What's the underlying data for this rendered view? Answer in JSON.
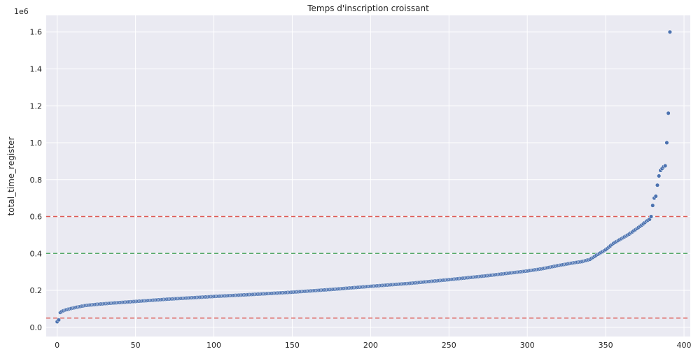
{
  "chart_data": {
    "type": "scatter",
    "title": "Temps d'inscription croissant",
    "xlabel": "",
    "ylabel": "total_time_register",
    "y_offset_label": "1e6",
    "y_scale": 1000000,
    "xlim": [
      -7,
      404
    ],
    "ylim": [
      -0.05,
      1.69
    ],
    "x_ticks": [
      0,
      50,
      100,
      150,
      200,
      250,
      300,
      350,
      400
    ],
    "y_ticks": [
      0.0,
      0.2,
      0.4,
      0.6,
      0.8,
      1.0,
      1.2,
      1.4,
      1.6
    ],
    "x_tick_labels": [
      "0",
      "50",
      "100",
      "150",
      "200",
      "250",
      "300",
      "350",
      "400"
    ],
    "y_tick_labels": [
      "0.0",
      "0.2",
      "0.4",
      "0.6",
      "0.8",
      "1.0",
      "1.2",
      "1.4",
      "1.6"
    ],
    "grid": true,
    "colors": {
      "background": "#eaeaf2",
      "grid": "#ffffff",
      "points": "#4c72b0",
      "point_edge": "#ffffff",
      "red_line": "#dd5a55",
      "green_line": "#55a868"
    },
    "hlines": [
      {
        "y": 0.05,
        "color": "#dd5a55",
        "style": "dashed"
      },
      {
        "y": 0.4,
        "color": "#55a868",
        "style": "dashed"
      },
      {
        "y": 0.6,
        "color": "#dd5a55",
        "style": "dashed"
      }
    ],
    "n_points": 392,
    "profile": [
      [
        0,
        0.03
      ],
      [
        1,
        0.04
      ],
      [
        2,
        0.08
      ],
      [
        3,
        0.086
      ],
      [
        5,
        0.093
      ],
      [
        8,
        0.1
      ],
      [
        12,
        0.108
      ],
      [
        18,
        0.118
      ],
      [
        25,
        0.124
      ],
      [
        35,
        0.131
      ],
      [
        50,
        0.14
      ],
      [
        70,
        0.152
      ],
      [
        100,
        0.167
      ],
      [
        125,
        0.178
      ],
      [
        150,
        0.19
      ],
      [
        175,
        0.205
      ],
      [
        200,
        0.222
      ],
      [
        225,
        0.238
      ],
      [
        250,
        0.258
      ],
      [
        275,
        0.28
      ],
      [
        300,
        0.305
      ],
      [
        310,
        0.318
      ],
      [
        320,
        0.335
      ],
      [
        330,
        0.35
      ],
      [
        335,
        0.356
      ],
      [
        340,
        0.368
      ],
      [
        345,
        0.395
      ],
      [
        350,
        0.42
      ],
      [
        355,
        0.455
      ],
      [
        360,
        0.48
      ],
      [
        365,
        0.505
      ],
      [
        370,
        0.535
      ],
      [
        374,
        0.56
      ],
      [
        376,
        0.575
      ],
      [
        378,
        0.585
      ],
      [
        379,
        0.6
      ],
      [
        380,
        0.66
      ],
      [
        381,
        0.7
      ],
      [
        382,
        0.71
      ],
      [
        383,
        0.77
      ],
      [
        384,
        0.82
      ],
      [
        385,
        0.85
      ],
      [
        386,
        0.86
      ],
      [
        387,
        0.87
      ],
      [
        388,
        0.875
      ],
      [
        389,
        1.0
      ],
      [
        390,
        1.16
      ],
      [
        391,
        1.6
      ],
      [
        392,
        1.625
      ]
    ]
  }
}
